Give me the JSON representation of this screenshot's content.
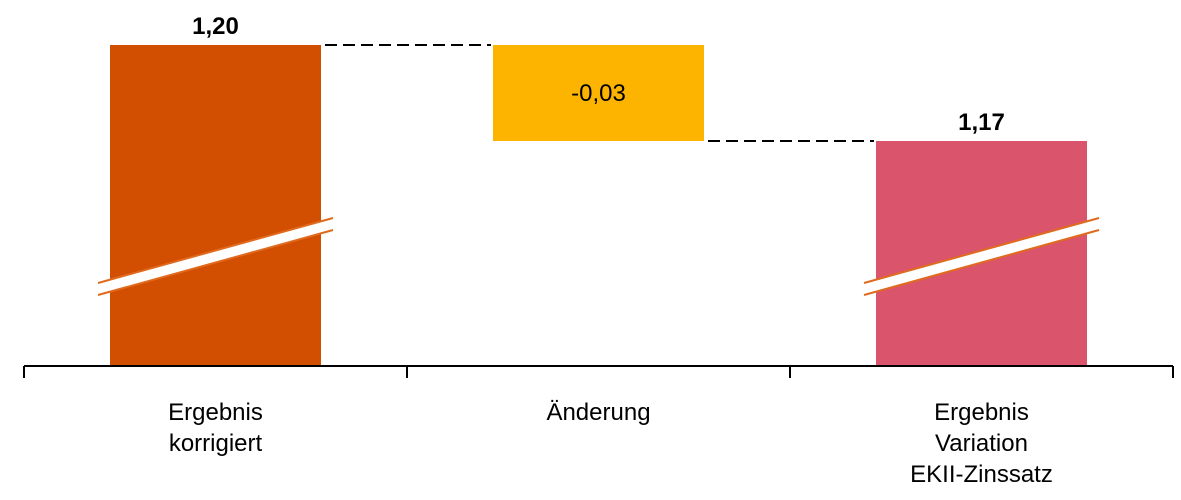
{
  "chart_data": {
    "type": "bar",
    "subtype": "waterfall",
    "categories": [
      [
        "Ergebnis",
        "korrigiert"
      ],
      [
        "Änderung"
      ],
      [
        "Ergebnis",
        "Variation",
        "EKII-Zinssatz"
      ]
    ],
    "bars": [
      {
        "kind": "total",
        "value": 1.2,
        "label": "1,20",
        "color": "#d24e00"
      },
      {
        "kind": "delta",
        "value": -0.03,
        "label": "-0,03",
        "color": "#fdb400"
      },
      {
        "kind": "total",
        "value": 1.17,
        "label": "1,17",
        "color": "#da546b"
      }
    ],
    "axis_break": true,
    "title": "",
    "xlabel": "",
    "ylabel": "",
    "grid": false
  }
}
